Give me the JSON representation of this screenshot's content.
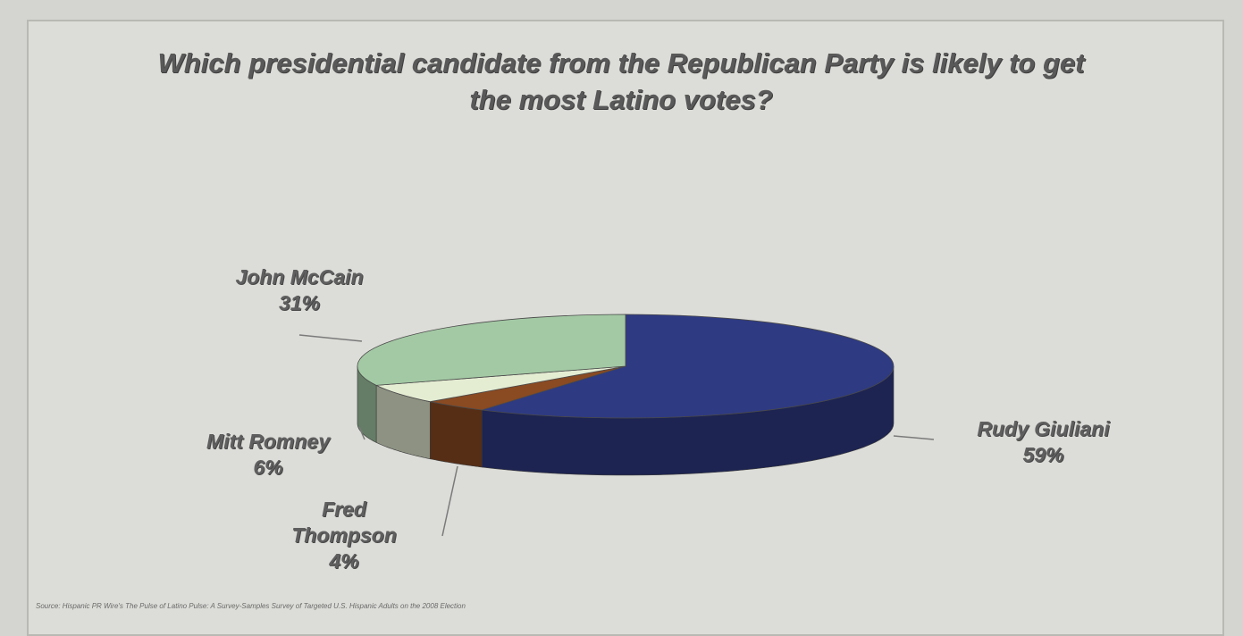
{
  "chart_data": {
    "type": "pie",
    "title": "Which presidential candidate from the Republican Party is likely to get the most Latino votes?",
    "slices": [
      {
        "name": "Rudy Giuliani",
        "value": 59,
        "label": "59%",
        "color": "#2e3a82"
      },
      {
        "name": "Fred Thompson",
        "value": 4,
        "label": "4%",
        "color": "#8a4a22"
      },
      {
        "name": "Mitt Romney",
        "value": 6,
        "label": "6%",
        "color": "#e4ecd2"
      },
      {
        "name": "John McCain",
        "value": 31,
        "label": "31%",
        "color": "#a3c9a4"
      }
    ],
    "source": "Source: Hispanic PR Wire's The Pulse of Latino Pulse: A Survey-Samples Survey of Targeted U.S. Hispanic Adults on the 2008 Election"
  }
}
